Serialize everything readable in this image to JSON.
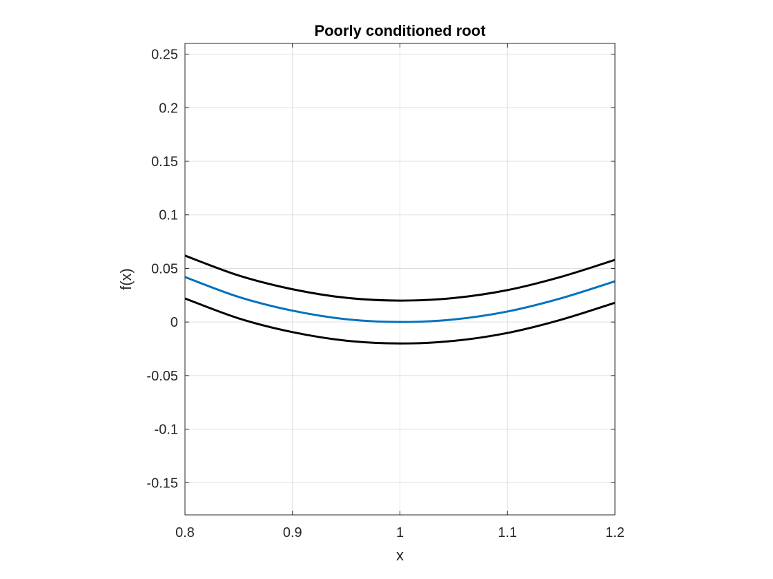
{
  "chart_data": {
    "type": "line",
    "title": "Poorly conditioned root",
    "xlabel": "x",
    "ylabel": "f(x)",
    "xlim": [
      0.8,
      1.2
    ],
    "ylim": [
      -0.18,
      0.26
    ],
    "xticks": [
      0.8,
      0.9,
      1.0,
      1.1,
      1.2
    ],
    "xtick_labels": [
      "0.8",
      "0.9",
      "1",
      "1.1",
      "1.2"
    ],
    "yticks": [
      -0.15,
      -0.1,
      -0.05,
      0,
      0.05,
      0.1,
      0.15,
      0.2,
      0.25
    ],
    "ytick_labels": [
      "-0.15",
      "-0.1",
      "-0.05",
      "0",
      "0.05",
      "0.1",
      "0.15",
      "0.2",
      "0.25"
    ],
    "grid": true,
    "series": [
      {
        "color": "#000000",
        "x": [
          0.8,
          0.85,
          0.9,
          0.95,
          1.0,
          1.05,
          1.1,
          1.15,
          1.2
        ],
        "y": [
          0.062,
          0.0434,
          0.0306,
          0.0226,
          0.02,
          0.0224,
          0.0298,
          0.0422,
          0.058
        ]
      },
      {
        "color": "#0072BD",
        "x": [
          0.8,
          0.85,
          0.9,
          0.95,
          1.0,
          1.05,
          1.1,
          1.15,
          1.2
        ],
        "y": [
          0.042,
          0.0234,
          0.0106,
          0.0026,
          0.0,
          0.0024,
          0.0098,
          0.0222,
          0.038
        ]
      },
      {
        "color": "#000000",
        "x": [
          0.8,
          0.85,
          0.9,
          0.95,
          1.0,
          1.05,
          1.1,
          1.15,
          1.2
        ],
        "y": [
          0.022,
          0.0034,
          -0.0094,
          -0.0174,
          -0.02,
          -0.0176,
          -0.0102,
          0.0022,
          0.018
        ]
      }
    ]
  }
}
